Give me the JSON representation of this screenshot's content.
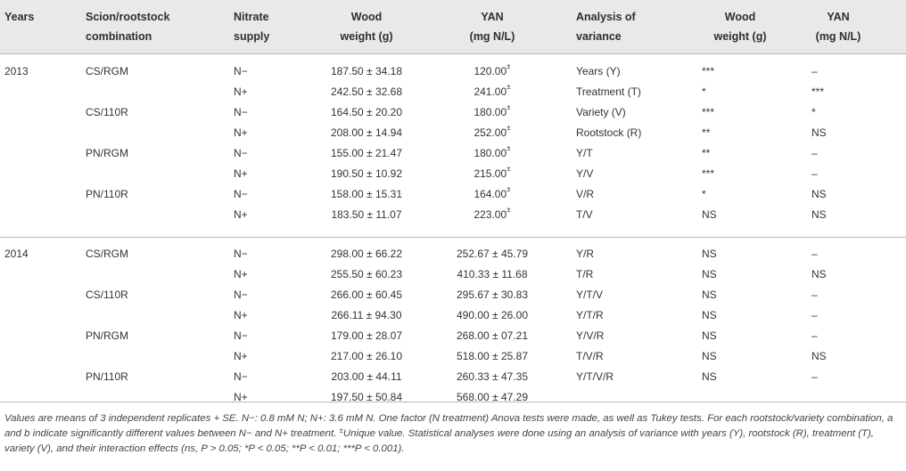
{
  "header": {
    "years": "Years",
    "combination_l1": "Scion/rootstock",
    "combination_l2": "combination",
    "nitrate_l1": "Nitrate",
    "nitrate_l2": "supply",
    "wood_l1": "Wood",
    "wood_l2": "weight (g)",
    "yan_l1": "YAN",
    "yan_l2": "(mg N/L)",
    "aov_l1": "Analysis of",
    "aov_l2": "variance",
    "sig_wood_l1": "Wood",
    "sig_wood_l2": "weight (g)",
    "sig_yan_l1": "YAN",
    "sig_yan_l2": "(mg N/L)"
  },
  "rows": [
    {
      "year": "2013",
      "combination": "CS/RGM",
      "nitrate": "N−",
      "wood": "187.50 ± 34.18",
      "yan": "120.00",
      "yan_sup": "±",
      "aov": "Years (Y)",
      "sig_wood": "***",
      "sig_yan": "–"
    },
    {
      "year": "",
      "combination": "",
      "nitrate": "N+",
      "wood": "242.50 ± 32.68",
      "yan": "241.00",
      "yan_sup": "±",
      "aov": "Treatment (T)",
      "sig_wood": "*",
      "sig_yan": "***"
    },
    {
      "year": "",
      "combination": "CS/110R",
      "nitrate": "N−",
      "wood": "164.50 ± 20.20",
      "yan": "180.00",
      "yan_sup": "±",
      "aov": "Variety (V)",
      "sig_wood": "***",
      "sig_yan": "*"
    },
    {
      "year": "",
      "combination": "",
      "nitrate": "N+",
      "wood": "208.00 ± 14.94",
      "yan": "252.00",
      "yan_sup": "±",
      "aov": "Rootstock (R)",
      "sig_wood": "**",
      "sig_yan": "NS"
    },
    {
      "year": "",
      "combination": "PN/RGM",
      "nitrate": "N−",
      "wood": "155.00 ± 21.47",
      "yan": "180.00",
      "yan_sup": "±",
      "aov": "Y/T",
      "sig_wood": "**",
      "sig_yan": "–"
    },
    {
      "year": "",
      "combination": "",
      "nitrate": "N+",
      "wood": "190.50 ± 10.92",
      "yan": "215.00",
      "yan_sup": "±",
      "aov": "Y/V",
      "sig_wood": "***",
      "sig_yan": "–"
    },
    {
      "year": "",
      "combination": "PN/110R",
      "nitrate": "N−",
      "wood": "158.00 ± 15.31",
      "yan": "164.00",
      "yan_sup": "±",
      "aov": "V/R",
      "sig_wood": "*",
      "sig_yan": "NS"
    },
    {
      "year": "",
      "combination": "",
      "nitrate": "N+",
      "wood": "183.50 ± 11.07",
      "yan": "223.00",
      "yan_sup": "±",
      "aov": "T/V",
      "sig_wood": "NS",
      "sig_yan": "NS"
    },
    {
      "year": "2014",
      "combination": "CS/RGM",
      "nitrate": "N−",
      "wood": "298.00 ± 66.22",
      "yan": "252.67 ± 45.79",
      "yan_sup": "",
      "aov": "Y/R",
      "sig_wood": "NS",
      "sig_yan": "–"
    },
    {
      "year": "",
      "combination": "",
      "nitrate": "N+",
      "wood": "255.50 ± 60.23",
      "yan": "410.33 ± 11.68",
      "yan_sup": "",
      "aov": "T/R",
      "sig_wood": "NS",
      "sig_yan": "NS"
    },
    {
      "year": "",
      "combination": "CS/110R",
      "nitrate": "N−",
      "wood": "266.00 ± 60.45",
      "yan": "295.67 ± 30.83",
      "yan_sup": "",
      "aov": "Y/T/V",
      "sig_wood": "NS",
      "sig_yan": "–"
    },
    {
      "year": "",
      "combination": "",
      "nitrate": "N+",
      "wood": "266.11 ± 94.30",
      "yan": "490.00 ± 26.00",
      "yan_sup": "",
      "aov": "Y/T/R",
      "sig_wood": "NS",
      "sig_yan": "–"
    },
    {
      "year": "",
      "combination": "PN/RGM",
      "nitrate": "N−",
      "wood": "179.00 ± 28.07",
      "yan": "268.00 ± 07.21",
      "yan_sup": "",
      "aov": "Y/V/R",
      "sig_wood": "NS",
      "sig_yan": "–"
    },
    {
      "year": "",
      "combination": "",
      "nitrate": "N+",
      "wood": "217.00 ± 26.10",
      "yan": "518.00 ± 25.87",
      "yan_sup": "",
      "aov": "T/V/R",
      "sig_wood": "NS",
      "sig_yan": "NS"
    },
    {
      "year": "",
      "combination": "PN/110R",
      "nitrate": "N−",
      "wood": "203.00 ± 44.11",
      "yan": "260.33 ± 47.35",
      "yan_sup": "",
      "aov": "Y/T/V/R",
      "sig_wood": "NS",
      "sig_yan": "–"
    },
    {
      "year": "",
      "combination": "",
      "nitrate": "N+",
      "wood": "197.50 ± 50.84",
      "yan": "568.00 ± 47.29",
      "yan_sup": "",
      "aov": "",
      "sig_wood": "",
      "sig_yan": ""
    }
  ],
  "footnote": {
    "text_before_mark": "Values are means of 3 independent replicates + SE. N−: 0.8 mM N; N+: 3.6 mM N. One factor (N treatment) Anova tests were made, as well as Tukey tests. For each rootstock/variety combination, a and b indicate significantly different values between N− and N+ treatment. ",
    "mark": "±",
    "text_after_mark": "Unique value. Statistical analyses were done using an analysis of variance with years (Y), rootstock (R), treatment (T), variety (V), and their interaction effects (ns, P > 0.05; *P < 0.05; **P < 0.01; ***P < 0.001)."
  }
}
